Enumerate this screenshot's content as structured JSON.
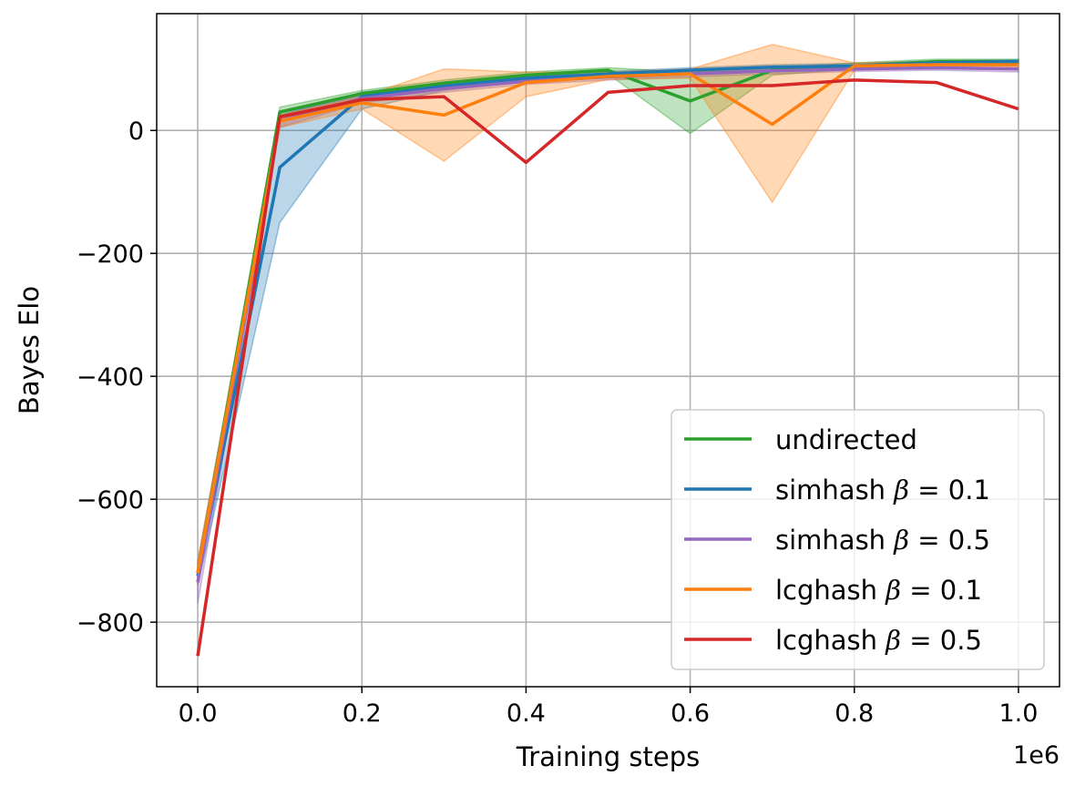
{
  "chart_data": {
    "type": "line",
    "xlabel": "Training steps",
    "ylabel": "Bayes Elo",
    "x_offset_label": "1e6",
    "x_multiplier": 1000000,
    "x": [
      0,
      100000,
      200000,
      300000,
      400000,
      500000,
      600000,
      700000,
      800000,
      900000,
      1000000
    ],
    "xlim": [
      -50000,
      1050000
    ],
    "ylim": [
      -905,
      190
    ],
    "xticks": [
      0,
      200000,
      400000,
      600000,
      800000,
      1000000
    ],
    "xtick_labels": [
      "0.0",
      "0.2",
      "0.4",
      "0.6",
      "0.8",
      "1.0"
    ],
    "yticks": [
      -800,
      -600,
      -400,
      -200,
      0
    ],
    "ytick_labels": [
      "−800",
      "−600",
      "−400",
      "−200",
      "0"
    ],
    "grid": true,
    "legend_position": "bottom-right",
    "series": [
      {
        "name": "undirected",
        "legend_prefix": "undirected",
        "legend_beta": "",
        "color": "#2ca02c",
        "values": [
          -720,
          30,
          60,
          77,
          90,
          98,
          48,
          98,
          105,
          112,
          112
        ],
        "band_lower": [
          -735,
          20,
          52,
          70,
          85,
          92,
          -5,
          90,
          100,
          108,
          108
        ],
        "band_upper": [
          -705,
          38,
          65,
          82,
          95,
          102,
          95,
          102,
          110,
          116,
          116
        ]
      },
      {
        "name": "simhash β = 0.1",
        "legend_prefix": "simhash ",
        "legend_beta": "0.1",
        "color": "#1f77b4",
        "values": [
          -725,
          -60,
          55,
          72,
          85,
          92,
          98,
          103,
          105,
          110,
          112
        ],
        "band_lower": [
          -740,
          -150,
          35,
          65,
          80,
          88,
          94,
          99,
          102,
          107,
          109
        ],
        "band_upper": [
          -710,
          25,
          62,
          78,
          90,
          96,
          102,
          107,
          109,
          113,
          115
        ]
      },
      {
        "name": "simhash β = 0.5",
        "legend_prefix": "simhash ",
        "legend_beta": "0.5",
        "color": "#9467bd",
        "values": [
          -735,
          15,
          52,
          68,
          80,
          87,
          92,
          97,
          100,
          102,
          100
        ],
        "band_lower": [
          -770,
          5,
          45,
          62,
          75,
          82,
          87,
          92,
          96,
          98,
          95
        ],
        "band_upper": [
          -700,
          25,
          58,
          74,
          85,
          92,
          97,
          102,
          104,
          106,
          105
        ]
      },
      {
        "name": "lcghash β = 0.1",
        "legend_prefix": "lcghash ",
        "legend_beta": "0.1",
        "color": "#ff7f0e",
        "values": [
          -720,
          15,
          45,
          25,
          78,
          88,
          92,
          10,
          105,
          107,
          107
        ],
        "band_lower": [
          -740,
          5,
          35,
          -50,
          55,
          83,
          85,
          -117,
          98,
          103,
          102
        ],
        "band_upper": [
          -700,
          25,
          55,
          100,
          95,
          95,
          100,
          140,
          110,
          112,
          112
        ]
      },
      {
        "name": "lcghash β = 0.5",
        "legend_prefix": "lcghash ",
        "legend_beta": "0.5",
        "color": "#d62728",
        "values": [
          -855,
          22,
          50,
          55,
          -52,
          62,
          73,
          73,
          82,
          78,
          35
        ]
      }
    ]
  }
}
